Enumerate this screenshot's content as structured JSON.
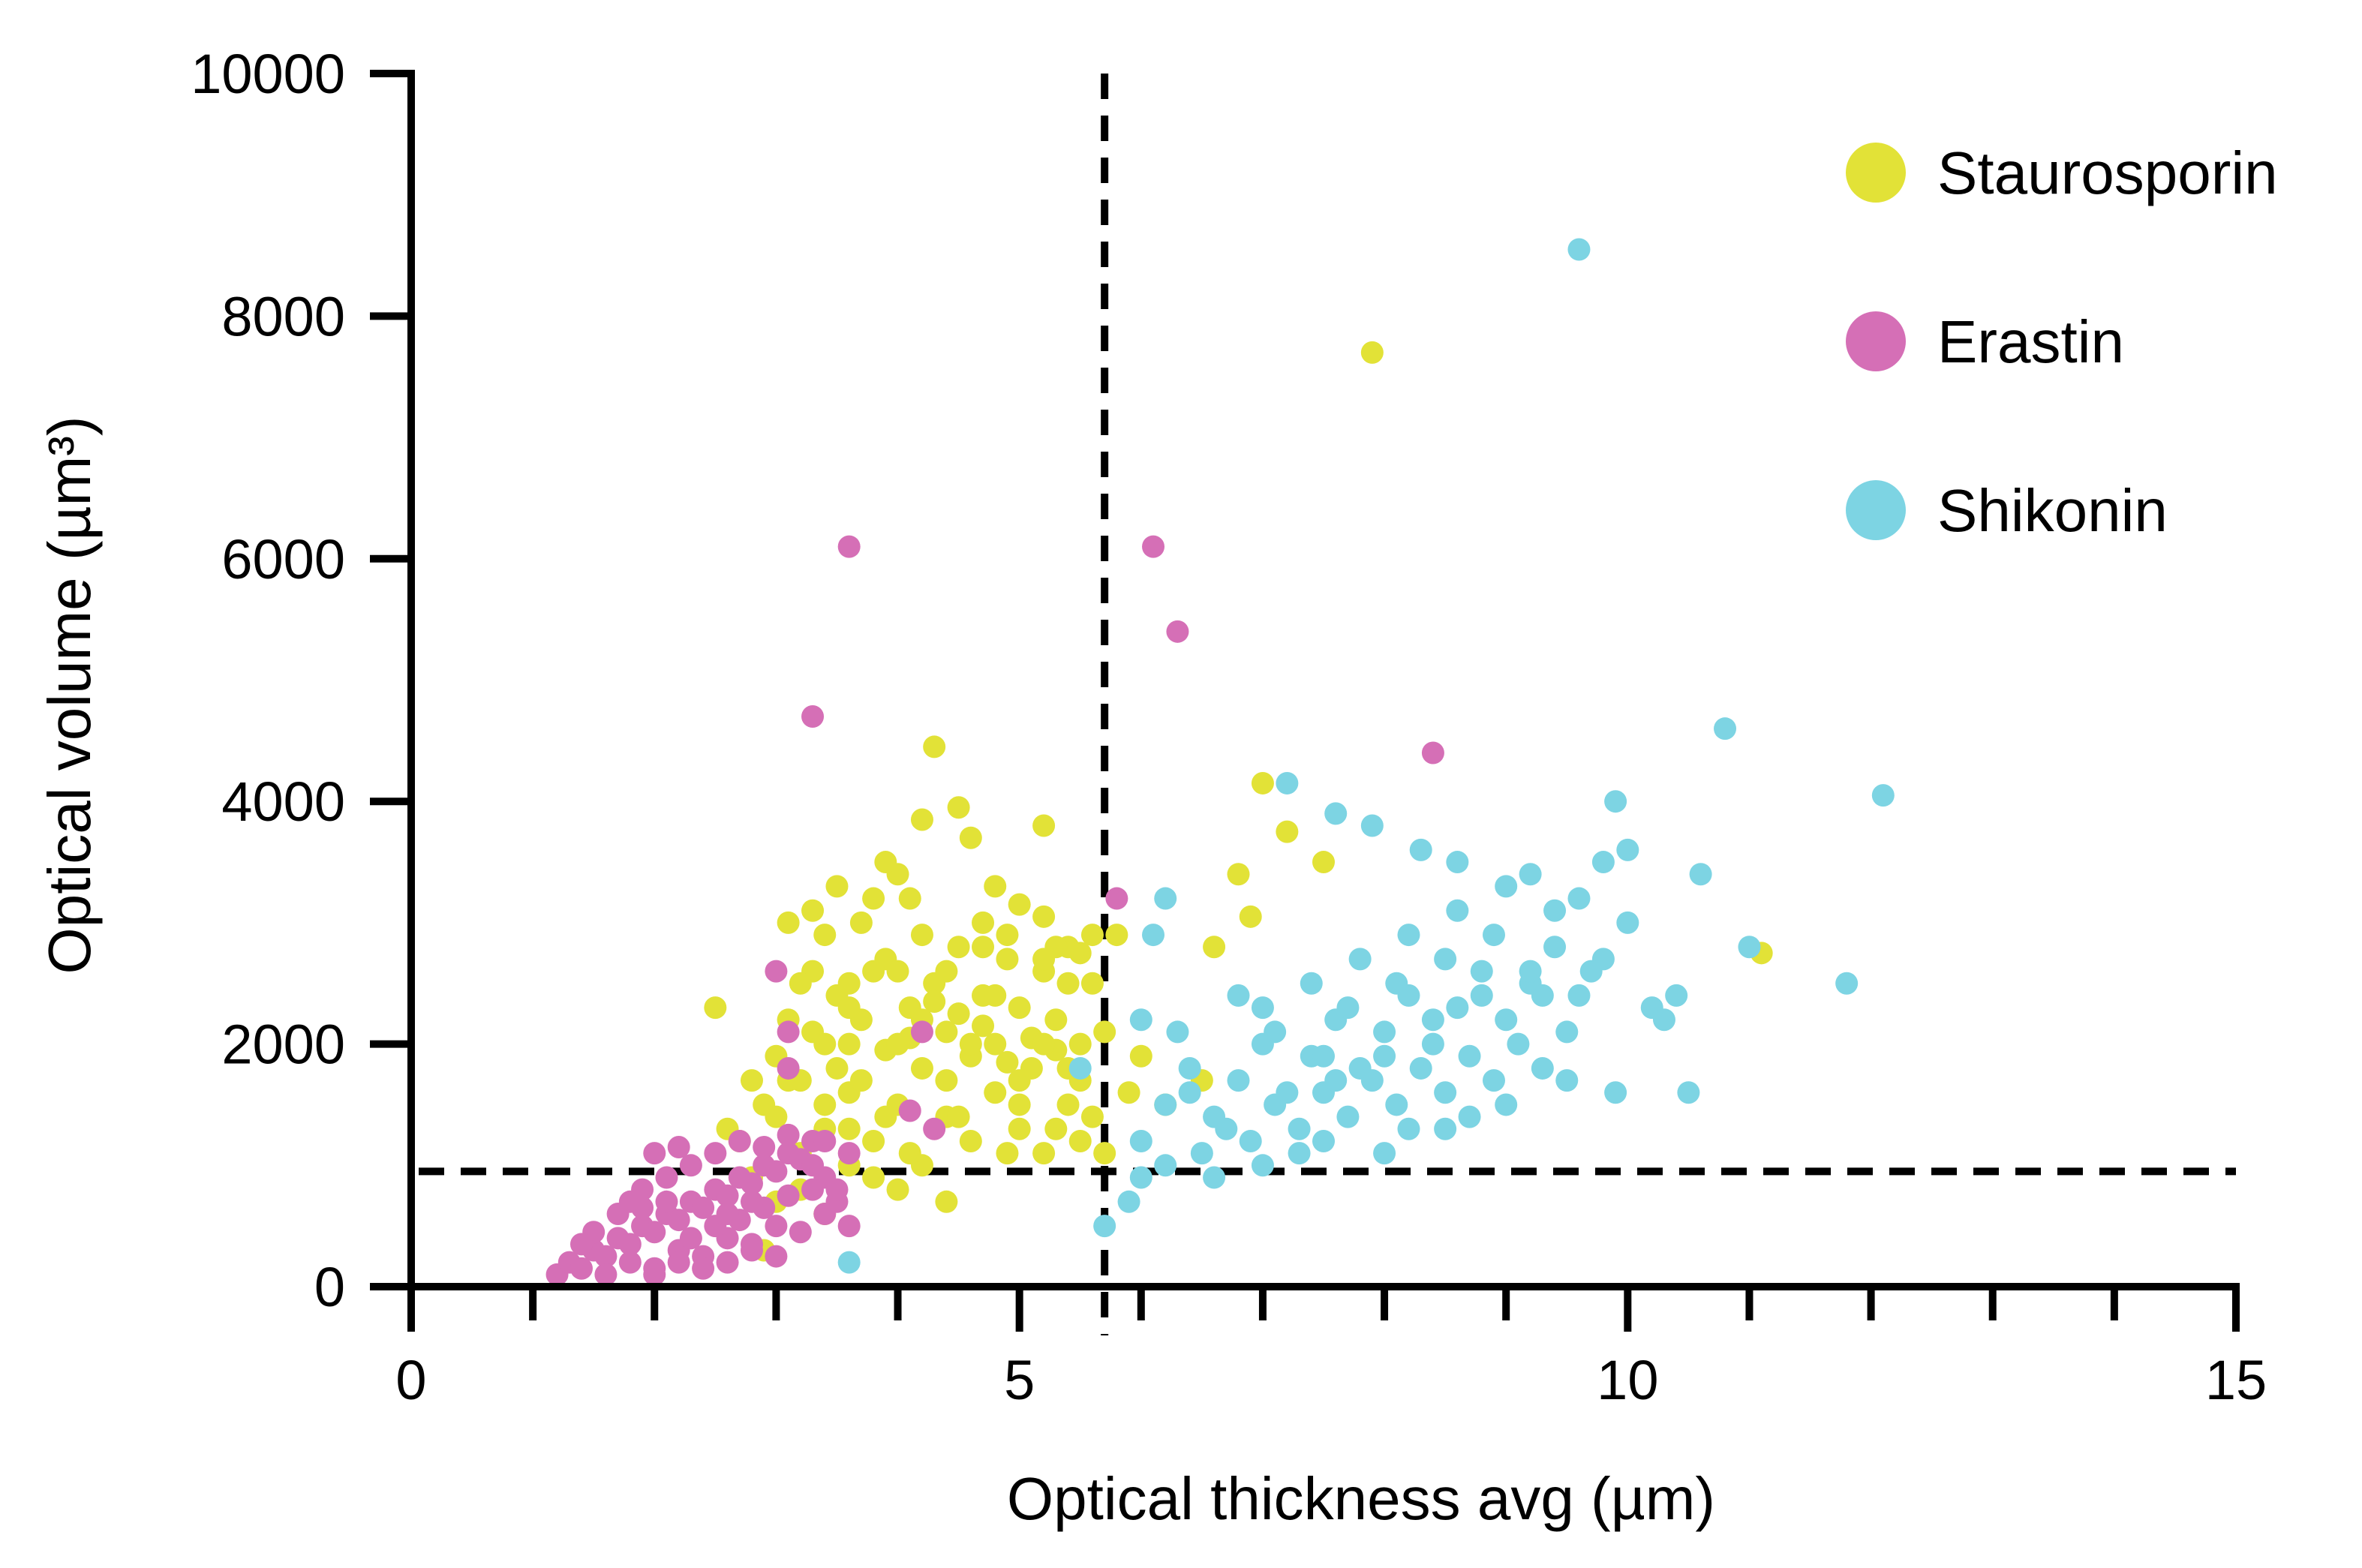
{
  "chart_data": {
    "type": "scatter",
    "xlabel": "Optical thickness avg (µm)",
    "ylabel": "Optical volume (µm³)",
    "xlim": [
      0,
      15
    ],
    "ylim": [
      0,
      10000
    ],
    "x_ticks": [
      0,
      5,
      10,
      15
    ],
    "x_tick_labels": [
      "0",
      "5",
      "10",
      "15"
    ],
    "x_minor_ticks": [
      1,
      2,
      3,
      4,
      6,
      7,
      8,
      9,
      11,
      12,
      13,
      14
    ],
    "y_ticks": [
      0,
      2000,
      4000,
      6000,
      8000,
      10000
    ],
    "y_tick_labels": [
      "0",
      "2000",
      "4000",
      "6000",
      "8000",
      "10000"
    ],
    "thresholds": {
      "vertical_x": 5.7,
      "horizontal_y": 950,
      "style": "dashed"
    },
    "grid": false,
    "legend_position": "top-right",
    "series": [
      {
        "name": "Staurosporin",
        "color": "#e2e237",
        "points": [
          [
            2.7,
            1200
          ],
          [
            2.9,
            1500
          ],
          [
            3.0,
            1900
          ],
          [
            3.1,
            2200
          ],
          [
            3.2,
            1700
          ],
          [
            3.3,
            2600
          ],
          [
            3.4,
            2900
          ],
          [
            3.5,
            2400
          ],
          [
            3.6,
            2000
          ],
          [
            3.7,
            3000
          ],
          [
            3.8,
            3200
          ],
          [
            3.9,
            2700
          ],
          [
            4.0,
            3400
          ],
          [
            4.1,
            2300
          ],
          [
            4.2,
            2900
          ],
          [
            4.3,
            2500
          ],
          [
            4.4,
            2100
          ],
          [
            4.5,
            2800
          ],
          [
            4.6,
            1900
          ],
          [
            4.7,
            2400
          ],
          [
            4.8,
            2000
          ],
          [
            4.9,
            2700
          ],
          [
            5.0,
            2300
          ],
          [
            5.1,
            1800
          ],
          [
            5.2,
            2600
          ],
          [
            5.3,
            2200
          ],
          [
            5.4,
            2800
          ],
          [
            5.5,
            1700
          ],
          [
            5.6,
            2500
          ],
          [
            5.8,
            2900
          ],
          [
            3.0,
            1400
          ],
          [
            3.2,
            1100
          ],
          [
            3.4,
            1300
          ],
          [
            3.6,
            1600
          ],
          [
            3.8,
            1200
          ],
          [
            4.0,
            1500
          ],
          [
            4.2,
            1800
          ],
          [
            4.4,
            1400
          ],
          [
            4.6,
            1200
          ],
          [
            4.8,
            1600
          ],
          [
            5.0,
            1300
          ],
          [
            5.2,
            1100
          ],
          [
            5.4,
            1500
          ],
          [
            5.6,
            1400
          ],
          [
            3.3,
            3100
          ],
          [
            3.5,
            3300
          ],
          [
            3.9,
            3500
          ],
          [
            4.1,
            3200
          ],
          [
            4.3,
            4450
          ],
          [
            4.5,
            3950
          ],
          [
            4.2,
            3850
          ],
          [
            4.6,
            3700
          ],
          [
            4.8,
            3300
          ],
          [
            5.0,
            3150
          ],
          [
            5.2,
            3050
          ],
          [
            5.3,
            2800
          ],
          [
            5.5,
            2750
          ],
          [
            5.6,
            2900
          ],
          [
            3.1,
            3000
          ],
          [
            3.6,
            2500
          ],
          [
            3.7,
            2200
          ],
          [
            3.9,
            1950
          ],
          [
            4.1,
            2050
          ],
          [
            4.3,
            2350
          ],
          [
            4.5,
            2250
          ],
          [
            4.7,
            2150
          ],
          [
            4.9,
            1850
          ],
          [
            5.1,
            2050
          ],
          [
            5.3,
            1950
          ],
          [
            5.5,
            2000
          ],
          [
            2.8,
            900
          ],
          [
            3.0,
            700
          ],
          [
            3.2,
            800
          ],
          [
            3.4,
            600
          ],
          [
            3.6,
            1000
          ],
          [
            3.8,
            900
          ],
          [
            4.0,
            800
          ],
          [
            4.2,
            1000
          ],
          [
            4.4,
            700
          ],
          [
            2.9,
            300
          ],
          [
            2.6,
            1300
          ],
          [
            2.5,
            2300
          ],
          [
            2.8,
            1700
          ],
          [
            3.3,
            2100
          ],
          [
            3.5,
            1800
          ],
          [
            3.7,
            1700
          ],
          [
            4.0,
            2600
          ],
          [
            4.4,
            2600
          ],
          [
            4.7,
            2800
          ],
          [
            5.2,
            2700
          ],
          [
            5.4,
            2500
          ],
          [
            5.7,
            2100
          ],
          [
            5.9,
            1600
          ],
          [
            6.0,
            1900
          ],
          [
            6.6,
            2800
          ],
          [
            6.8,
            3400
          ],
          [
            6.9,
            3050
          ],
          [
            7.0,
            4150
          ],
          [
            7.2,
            3750
          ],
          [
            7.5,
            3500
          ],
          [
            7.9,
            7700
          ],
          [
            11.1,
            2750
          ],
          [
            6.2,
            1500
          ],
          [
            6.5,
            1700
          ],
          [
            3.2,
            2500
          ],
          [
            3.4,
            2000
          ],
          [
            3.6,
            2300
          ],
          [
            3.8,
            2600
          ],
          [
            4.0,
            2000
          ],
          [
            4.2,
            2200
          ],
          [
            4.6,
            2000
          ],
          [
            4.8,
            2400
          ],
          [
            5.0,
            1700
          ],
          [
            5.2,
            2000
          ],
          [
            5.4,
            1800
          ],
          [
            5.0,
            1500
          ],
          [
            4.4,
            1700
          ],
          [
            3.9,
            1400
          ],
          [
            3.1,
            1700
          ],
          [
            3.6,
            1300
          ],
          [
            5.2,
            3800
          ],
          [
            4.7,
            3000
          ],
          [
            4.9,
            2900
          ],
          [
            3.4,
            1500
          ],
          [
            4.1,
            1100
          ],
          [
            4.5,
            1400
          ],
          [
            4.9,
            1100
          ],
          [
            5.3,
            1300
          ],
          [
            5.5,
            1200
          ],
          [
            5.7,
            1100
          ]
        ]
      },
      {
        "name": "Erastin",
        "color": "#d56fb6",
        "points": [
          [
            1.2,
            100
          ],
          [
            1.3,
            200
          ],
          [
            1.4,
            150
          ],
          [
            1.5,
            300
          ],
          [
            1.6,
            250
          ],
          [
            1.7,
            400
          ],
          [
            1.8,
            350
          ],
          [
            1.9,
            500
          ],
          [
            2.0,
            450
          ],
          [
            2.1,
            600
          ],
          [
            2.2,
            550
          ],
          [
            2.3,
            700
          ],
          [
            2.4,
            650
          ],
          [
            2.5,
            800
          ],
          [
            2.6,
            750
          ],
          [
            2.7,
            900
          ],
          [
            2.8,
            850
          ],
          [
            2.9,
            1000
          ],
          [
            3.0,
            950
          ],
          [
            3.1,
            1100
          ],
          [
            3.2,
            1050
          ],
          [
            3.3,
            1200
          ],
          [
            3.4,
            900
          ],
          [
            3.5,
            700
          ],
          [
            1.6,
            100
          ],
          [
            1.8,
            200
          ],
          [
            2.0,
            150
          ],
          [
            2.2,
            300
          ],
          [
            2.4,
            250
          ],
          [
            2.6,
            400
          ],
          [
            2.8,
            350
          ],
          [
            3.0,
            500
          ],
          [
            3.2,
            450
          ],
          [
            3.4,
            600
          ],
          [
            1.9,
            800
          ],
          [
            2.1,
            900
          ],
          [
            2.3,
            1000
          ],
          [
            2.5,
            1100
          ],
          [
            2.7,
            1200
          ],
          [
            2.9,
            1150
          ],
          [
            3.1,
            1250
          ],
          [
            3.3,
            1000
          ],
          [
            3.5,
            800
          ],
          [
            3.6,
            500
          ],
          [
            2.0,
            100
          ],
          [
            2.2,
            200
          ],
          [
            2.4,
            150
          ],
          [
            2.6,
            200
          ],
          [
            2.8,
            300
          ],
          [
            3.0,
            250
          ],
          [
            3.6,
            6100
          ],
          [
            3.3,
            4700
          ],
          [
            6.1,
            6100
          ],
          [
            6.3,
            5400
          ],
          [
            8.4,
            4400
          ],
          [
            5.8,
            3200
          ],
          [
            3.0,
            2600
          ],
          [
            3.1,
            2100
          ],
          [
            3.1,
            1800
          ],
          [
            4.2,
            2100
          ],
          [
            4.1,
            1450
          ],
          [
            4.3,
            1300
          ],
          [
            3.6,
            1100
          ],
          [
            3.4,
            1200
          ],
          [
            1.7,
            600
          ],
          [
            1.9,
            650
          ],
          [
            2.1,
            700
          ],
          [
            2.3,
            400
          ],
          [
            2.5,
            500
          ],
          [
            2.7,
            550
          ],
          [
            2.9,
            650
          ],
          [
            3.1,
            750
          ],
          [
            3.3,
            800
          ],
          [
            2.2,
            1150
          ],
          [
            2.0,
            1100
          ],
          [
            1.5,
            450
          ],
          [
            1.4,
            350
          ],
          [
            1.8,
            700
          ],
          [
            2.6,
            600
          ],
          [
            2.8,
            700
          ]
        ]
      },
      {
        "name": "Shikonin",
        "color": "#7dd4e3",
        "points": [
          [
            6.0,
            1200
          ],
          [
            6.2,
            1500
          ],
          [
            6.4,
            1800
          ],
          [
            6.6,
            1400
          ],
          [
            6.8,
            1700
          ],
          [
            7.0,
            2000
          ],
          [
            7.2,
            1600
          ],
          [
            7.4,
            1900
          ],
          [
            7.6,
            2200
          ],
          [
            7.8,
            1800
          ],
          [
            8.0,
            2100
          ],
          [
            8.2,
            2400
          ],
          [
            8.4,
            2000
          ],
          [
            8.6,
            2300
          ],
          [
            8.8,
            2600
          ],
          [
            9.0,
            2200
          ],
          [
            9.2,
            2500
          ],
          [
            9.4,
            2800
          ],
          [
            9.6,
            2400
          ],
          [
            9.8,
            2700
          ],
          [
            10.0,
            3000
          ],
          [
            10.2,
            2300
          ],
          [
            10.4,
            2400
          ],
          [
            10.6,
            3400
          ],
          [
            6.5,
            1100
          ],
          [
            6.7,
            1300
          ],
          [
            6.9,
            1200
          ],
          [
            7.1,
            1500
          ],
          [
            7.3,
            1300
          ],
          [
            7.5,
            1600
          ],
          [
            7.7,
            1400
          ],
          [
            7.9,
            1700
          ],
          [
            8.1,
            1500
          ],
          [
            8.3,
            1800
          ],
          [
            8.5,
            1600
          ],
          [
            8.7,
            1900
          ],
          [
            8.9,
            1700
          ],
          [
            9.1,
            2000
          ],
          [
            9.3,
            1800
          ],
          [
            9.5,
            2100
          ],
          [
            7.0,
            2300
          ],
          [
            7.4,
            2500
          ],
          [
            7.8,
            2700
          ],
          [
            8.2,
            2900
          ],
          [
            8.6,
            3100
          ],
          [
            9.0,
            3300
          ],
          [
            9.4,
            3100
          ],
          [
            9.8,
            3500
          ],
          [
            10.0,
            3600
          ],
          [
            9.6,
            3200
          ],
          [
            7.2,
            4150
          ],
          [
            7.6,
            3900
          ],
          [
            7.9,
            3800
          ],
          [
            8.3,
            3600
          ],
          [
            8.6,
            3500
          ],
          [
            9.2,
            3400
          ],
          [
            9.9,
            4000
          ],
          [
            10.8,
            4600
          ],
          [
            12.1,
            4050
          ],
          [
            11.8,
            2500
          ],
          [
            11.0,
            2800
          ],
          [
            10.5,
            1600
          ],
          [
            9.6,
            8550
          ],
          [
            6.0,
            900
          ],
          [
            6.2,
            1000
          ],
          [
            5.9,
            700
          ],
          [
            5.7,
            500
          ],
          [
            3.6,
            200
          ],
          [
            5.5,
            1800
          ],
          [
            6.0,
            2200
          ],
          [
            6.1,
            2900
          ],
          [
            6.2,
            3200
          ],
          [
            7.0,
            1000
          ],
          [
            7.5,
            1200
          ],
          [
            8.0,
            1100
          ],
          [
            8.5,
            1300
          ],
          [
            9.0,
            1500
          ],
          [
            9.5,
            1700
          ],
          [
            6.6,
            900
          ],
          [
            7.3,
            1100
          ],
          [
            7.7,
            2300
          ],
          [
            8.1,
            2500
          ],
          [
            8.5,
            2700
          ],
          [
            8.9,
            2900
          ],
          [
            9.3,
            2400
          ],
          [
            9.7,
            2600
          ],
          [
            7.1,
            2100
          ],
          [
            7.5,
            1900
          ],
          [
            6.8,
            2400
          ],
          [
            6.3,
            2100
          ],
          [
            8.4,
            2200
          ],
          [
            8.8,
            2400
          ],
          [
            9.2,
            2600
          ],
          [
            8.0,
            1900
          ],
          [
            7.6,
            1700
          ],
          [
            9.9,
            1600
          ],
          [
            10.3,
            2200
          ],
          [
            8.7,
            1400
          ],
          [
            8.2,
            1300
          ],
          [
            6.4,
            1600
          ]
        ]
      }
    ]
  }
}
